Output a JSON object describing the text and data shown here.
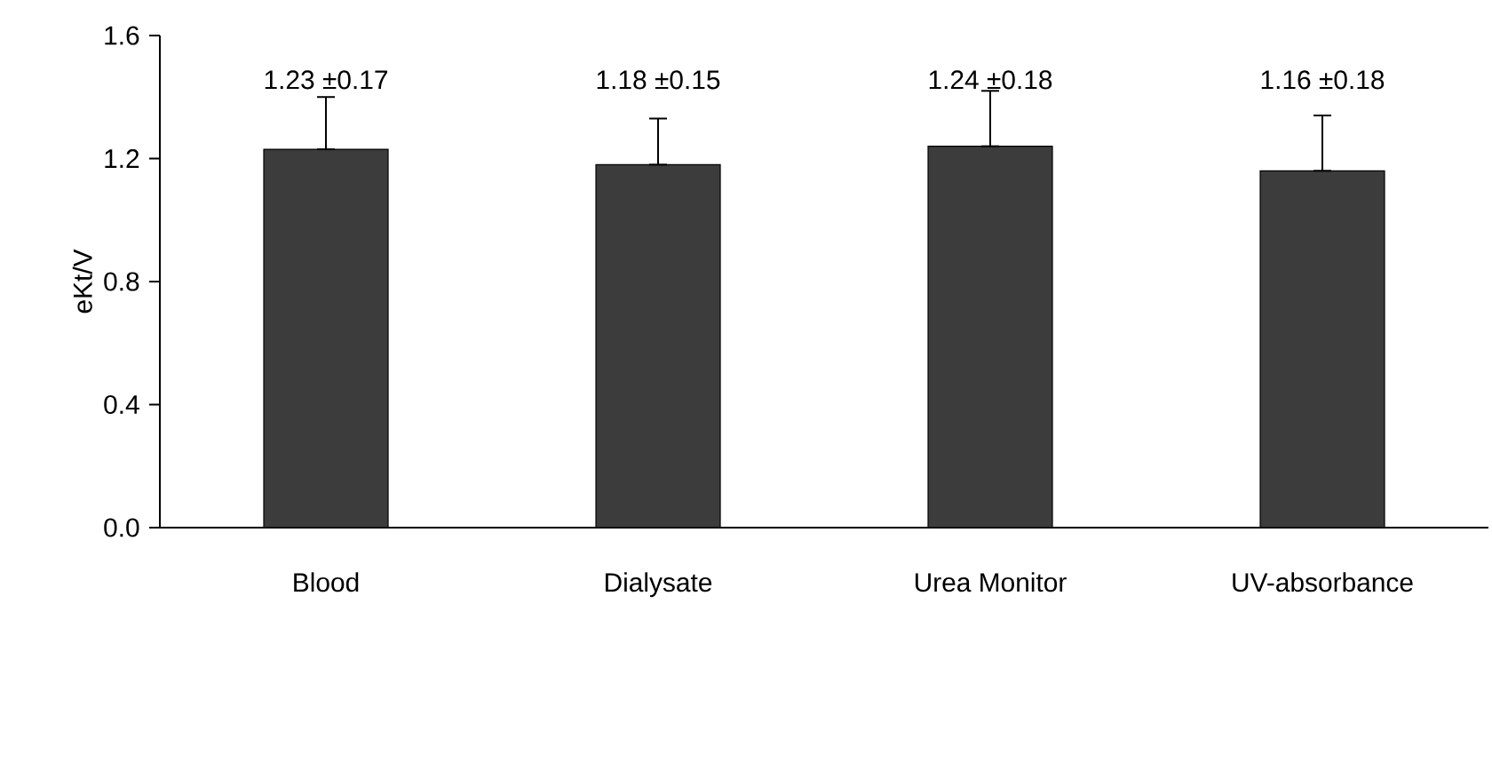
{
  "chart_data": {
    "type": "bar",
    "ylabel": "eKt/V",
    "categories": [
      "Blood",
      "Dialysate",
      "Urea Monitor",
      "UV-absorbance"
    ],
    "values": [
      1.23,
      1.18,
      1.24,
      1.16
    ],
    "errors": [
      [
        1.23,
        1.4
      ],
      [
        1.18,
        1.33
      ],
      [
        1.24,
        1.42
      ],
      [
        1.16,
        1.34
      ]
    ],
    "value_labels": [
      "1.23 ±0.17",
      "1.18 ±0.15",
      "1.24 ±0.18",
      "1.16 ±0.18"
    ],
    "color": "#3c3c3c",
    "ylim": [
      0,
      1.6
    ],
    "yticks": [
      {
        "value": 0,
        "label": "0.0"
      },
      0.4,
      0.8,
      1.2,
      1.6
    ],
    "grid": false
  }
}
